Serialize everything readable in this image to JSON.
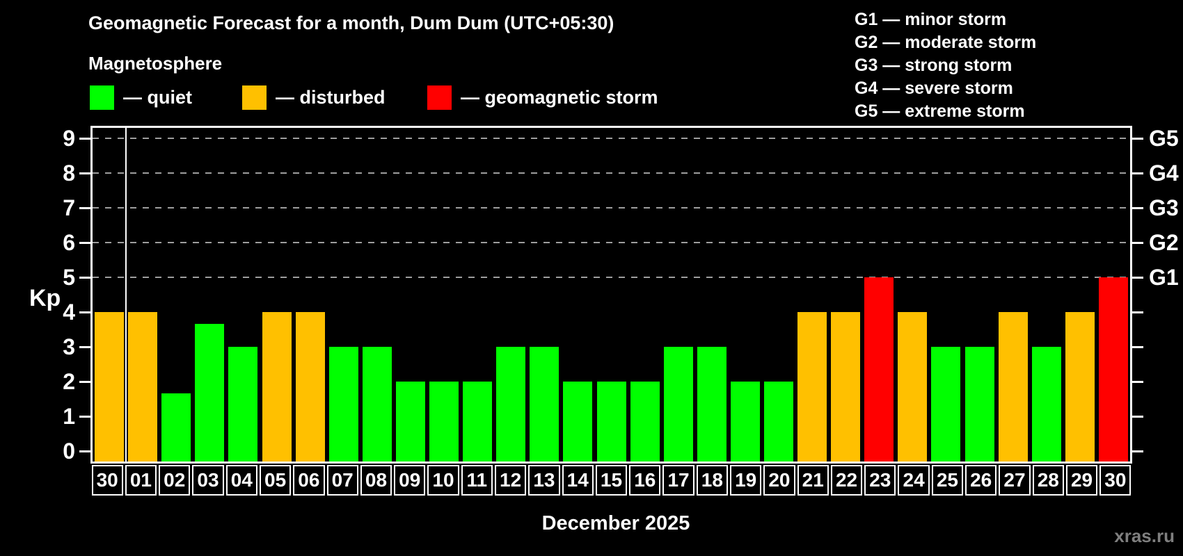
{
  "title": "Geomagnetic Forecast for a month, Dum Dum (UTC+05:30)",
  "subtitle": "Magnetosphere",
  "legend": {
    "quiet_label": "— quiet",
    "disturbed_label": "— disturbed",
    "storm_label": "— geomagnetic storm"
  },
  "g_legend": [
    "G1 — minor storm",
    "G2 — moderate storm",
    "G3 — strong storm",
    "G4 — severe storm",
    "G5 — extreme storm"
  ],
  "colors": {
    "quiet": "#00ff00",
    "disturbed": "#ffc000",
    "storm": "#ff0000",
    "grid": "#9e9e9e",
    "frame": "#ffffff",
    "background": "#000000",
    "watermark": "#7f7f7f"
  },
  "axis": {
    "y_label": "Kp",
    "y_ticks": [
      0,
      1,
      2,
      3,
      4,
      5,
      6,
      7,
      8,
      9
    ],
    "right_labels": {
      "5": "G1",
      "6": "G2",
      "7": "G3",
      "8": "G4",
      "9": "G5"
    },
    "x_label": "December 2025"
  },
  "watermark": "xras.ru",
  "chart_data": {
    "type": "bar",
    "title": "Geomagnetic Forecast for a month, Dum Dum (UTC+05:30)",
    "subtitle": "Magnetosphere",
    "categories": [
      "30",
      "01",
      "02",
      "03",
      "04",
      "05",
      "06",
      "07",
      "08",
      "09",
      "10",
      "11",
      "12",
      "13",
      "14",
      "15",
      "16",
      "17",
      "18",
      "19",
      "20",
      "21",
      "22",
      "23",
      "24",
      "25",
      "26",
      "27",
      "28",
      "29",
      "30"
    ],
    "values": [
      4,
      4,
      1.67,
      3.67,
      3,
      4,
      4,
      3,
      3,
      2,
      2,
      2,
      3,
      3,
      2,
      2,
      2,
      3,
      3,
      2,
      2,
      4,
      4,
      5,
      4,
      3,
      3,
      4,
      3,
      4,
      5
    ],
    "xlabel": "December 2025",
    "ylabel": "Kp",
    "ylim": [
      0,
      9.3
    ],
    "gridlines_at": [
      5,
      6,
      7,
      8,
      9
    ],
    "grid": "horizontal dashed lines at Kp 5-9 (G1-G5 levels)",
    "legend_position": "top",
    "thresholds": {
      "disturbed_min": 4,
      "storm_min": 5
    },
    "month_boundary_after_index": 0,
    "series_note": "bar color: quiet if Kp<4, disturbed if 4<=Kp<5, geomagnetic storm if Kp>=5"
  }
}
